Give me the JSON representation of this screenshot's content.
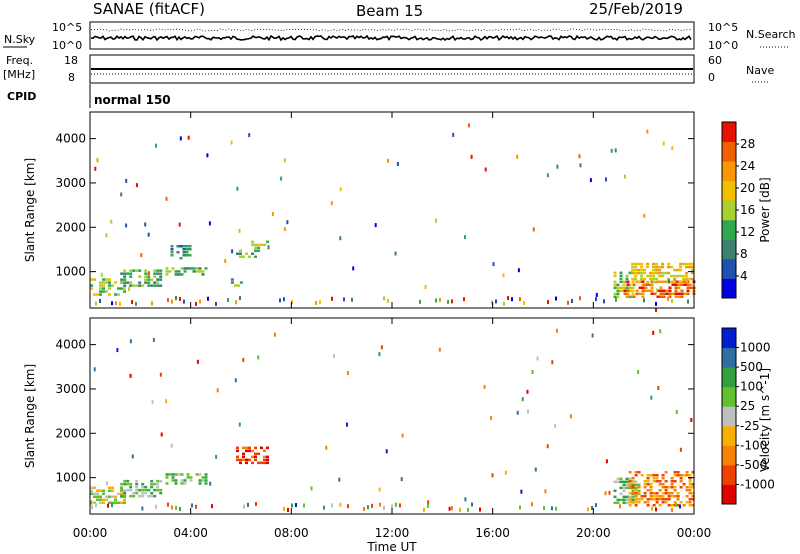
{
  "header": {
    "title": "SANAE (fitACF)",
    "beam": "Beam 15",
    "date": "25/Feb/2019"
  },
  "panels": {
    "nsky": {
      "label": "N.Sky",
      "ticks": [
        "10^5",
        "10^0"
      ],
      "right_label": "N.Search",
      "right_ticks": [
        "10^5",
        "10^0"
      ]
    },
    "freq": {
      "label_line1": "Freq.",
      "label_line2": "[MHz]",
      "ticks": [
        "18",
        "8"
      ],
      "right_label": "Nave",
      "right_ticks": [
        "60",
        "0"
      ]
    },
    "cpid": {
      "label": "CPID",
      "text": "normal 150"
    }
  },
  "chart_data": [
    {
      "type": "heatmap",
      "name": "power",
      "ylabel": "Slant Range [km]",
      "yticks": [
        "4000",
        "3000",
        "2000",
        "1000"
      ],
      "ylim": [
        180,
        4600
      ],
      "xlim": [
        0,
        24
      ],
      "colorbar": {
        "label": "Power [dB]",
        "ticks": [
          "28",
          "24",
          "20",
          "16",
          "12",
          "8",
          "4"
        ],
        "range": [
          0,
          30
        ]
      },
      "clusters": [
        {
          "t": [
            0.0,
            1.4
          ],
          "r": [
            500,
            850
          ],
          "value": 14
        },
        {
          "t": [
            1.2,
            2.8
          ],
          "r": [
            650,
            1050
          ],
          "value": 10
        },
        {
          "t": [
            3.0,
            4.6
          ],
          "r": [
            900,
            1100
          ],
          "value": 12
        },
        {
          "t": [
            3.2,
            4.0
          ],
          "r": [
            1300,
            1600
          ],
          "value": 8
        },
        {
          "t": [
            5.8,
            6.6
          ],
          "r": [
            1350,
            1500
          ],
          "value": 12
        },
        {
          "t": [
            6.4,
            7.0
          ],
          "r": [
            1450,
            1700
          ],
          "value": 14
        },
        {
          "t": [
            5.6,
            6.0
          ],
          "r": [
            700,
            850
          ],
          "value": 12
        },
        {
          "t": [
            20.8,
            21.6
          ],
          "r": [
            400,
            1000
          ],
          "value": 14
        },
        {
          "t": [
            21.2,
            24.0
          ],
          "r": [
            400,
            800
          ],
          "value": 26
        },
        {
          "t": [
            21.5,
            24.0
          ],
          "r": [
            750,
            1200
          ],
          "value": 18
        }
      ]
    },
    {
      "type": "heatmap",
      "name": "velocity",
      "ylabel": "Slant Range [km]",
      "yticks": [
        "4000",
        "3000",
        "2000",
        "1000"
      ],
      "ylim": [
        180,
        4600
      ],
      "xlim": [
        0,
        24
      ],
      "xticks": [
        "00:00",
        "04:00",
        "08:00",
        "12:00",
        "16:00",
        "20:00",
        "00:00"
      ],
      "xlabel": "Time UT",
      "colorbar": {
        "label": "Velocity [m s^-1]",
        "ticks": [
          "1000",
          "500",
          "100",
          "25",
          "-25",
          "-100",
          "-500",
          "-1000"
        ]
      },
      "clusters": [
        {
          "t": [
            0.0,
            1.4
          ],
          "r": [
            450,
            800
          ],
          "value": "25"
        },
        {
          "t": [
            1.2,
            2.8
          ],
          "r": [
            550,
            950
          ],
          "value": "100"
        },
        {
          "t": [
            3.0,
            4.6
          ],
          "r": [
            850,
            1100
          ],
          "value": "100"
        },
        {
          "t": [
            5.8,
            7.0
          ],
          "r": [
            1300,
            1700
          ],
          "value": "-500"
        },
        {
          "t": [
            20.8,
            21.8
          ],
          "r": [
            400,
            1000
          ],
          "value": "100"
        },
        {
          "t": [
            21.4,
            24.0
          ],
          "r": [
            400,
            1150
          ],
          "value": "-100"
        }
      ]
    }
  ],
  "colors": {
    "power_scale": [
      "#0000e0",
      "#2050b0",
      "#3c8070",
      "#30a850",
      "#a8d030",
      "#f0c000",
      "#f89800",
      "#f06000",
      "#e81000"
    ],
    "velocity_scale": [
      "#e00000",
      "#f04000",
      "#f88000",
      "#f8b000",
      "#c0c0c0",
      "#60c030",
      "#30a040",
      "#3070a0",
      "#0020d0"
    ]
  }
}
